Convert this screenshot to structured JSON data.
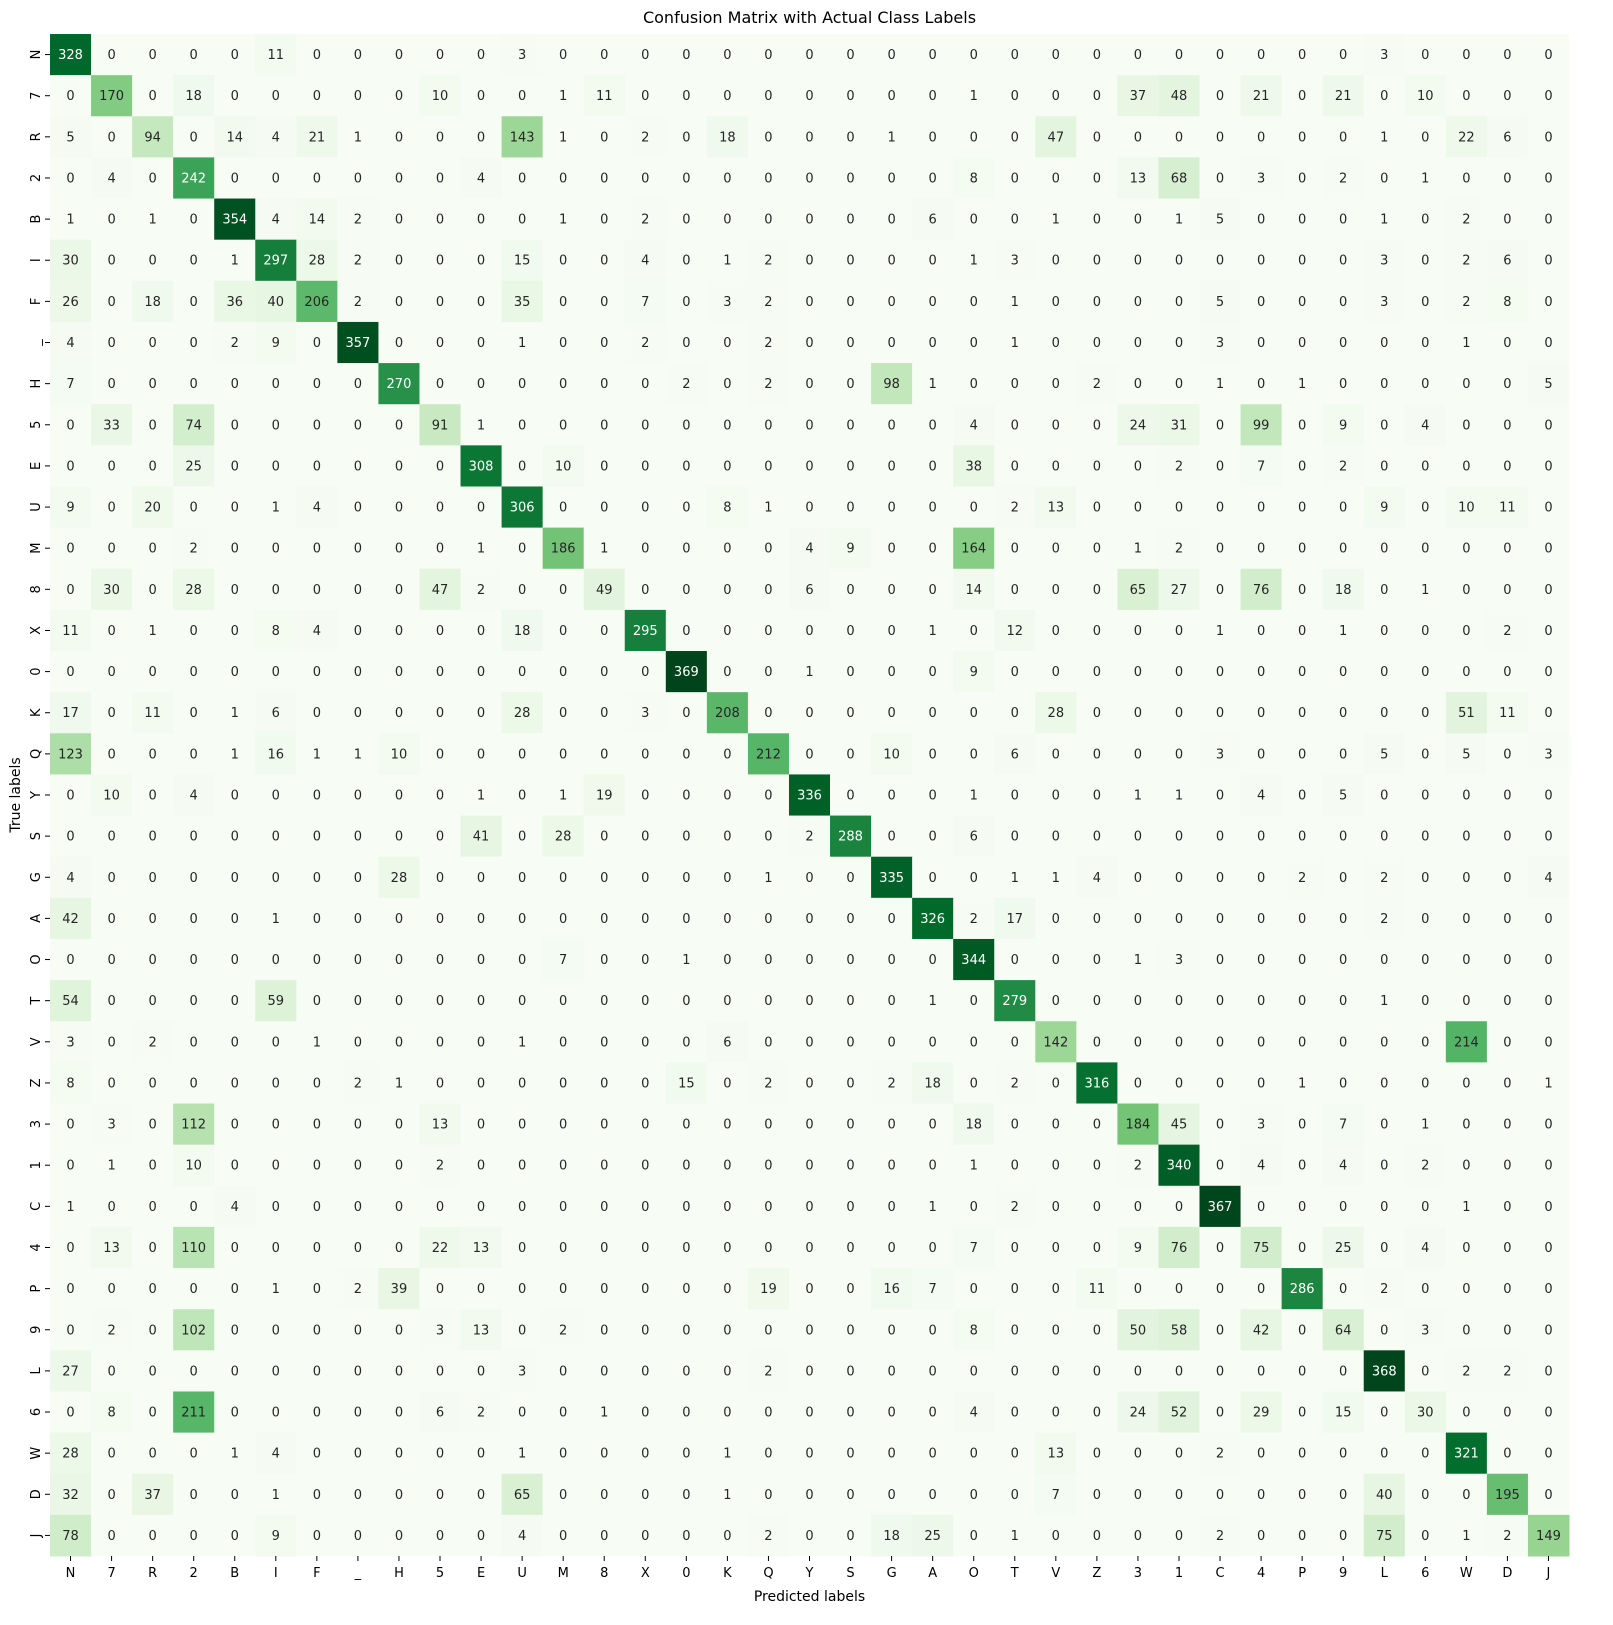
{
  "chart_data": {
    "type": "heatmap",
    "title": "Confusion Matrix with Actual Class Labels",
    "xlabel": "Predicted labels",
    "ylabel": "True labels",
    "colormap": "Greens",
    "colorbar": false,
    "value_range": [
      0,
      369
    ],
    "colors": {
      "low": "#f7fcf5",
      "high": "#00441b"
    },
    "x_categories": [
      "N",
      "7",
      "R",
      "2",
      "B",
      "I",
      "F",
      "_",
      "H",
      "5",
      "E",
      "U",
      "M",
      "8",
      "X",
      "0",
      "K",
      "Q",
      "Y",
      "S",
      "G",
      "A",
      "O",
      "T",
      "V",
      "Z",
      "3",
      "1",
      "C",
      "4",
      "P",
      "9",
      "L",
      "6",
      "W",
      "D",
      "J"
    ],
    "y_categories": [
      "N",
      "7",
      "R",
      "2",
      "B",
      "I",
      "F",
      "_",
      "H",
      "5",
      "E",
      "U",
      "M",
      "8",
      "X",
      "0",
      "K",
      "Q",
      "Y",
      "S",
      "G",
      "A",
      "O",
      "T",
      "V",
      "Z",
      "3",
      "1",
      "C",
      "4",
      "P",
      "9",
      "L",
      "6",
      "W",
      "D",
      "J"
    ],
    "matrix": [
      [
        328,
        0,
        0,
        0,
        0,
        11,
        0,
        0,
        0,
        0,
        0,
        3,
        0,
        0,
        0,
        0,
        0,
        0,
        0,
        0,
        0,
        0,
        0,
        0,
        0,
        0,
        0,
        0,
        0,
        0,
        0,
        0,
        3,
        0,
        0,
        0,
        0
      ],
      [
        0,
        170,
        0,
        18,
        0,
        0,
        0,
        0,
        0,
        10,
        0,
        0,
        1,
        11,
        0,
        0,
        0,
        0,
        0,
        0,
        0,
        0,
        1,
        0,
        0,
        0,
        37,
        48,
        0,
        21,
        0,
        21,
        0,
        10,
        0,
        0,
        0
      ],
      [
        5,
        0,
        94,
        0,
        14,
        4,
        21,
        1,
        0,
        0,
        0,
        143,
        1,
        0,
        2,
        0,
        18,
        0,
        0,
        0,
        1,
        0,
        0,
        0,
        47,
        0,
        0,
        0,
        0,
        0,
        0,
        0,
        1,
        0,
        22,
        6,
        0
      ],
      [
        0,
        4,
        0,
        242,
        0,
        0,
        0,
        0,
        0,
        0,
        4,
        0,
        0,
        0,
        0,
        0,
        0,
        0,
        0,
        0,
        0,
        0,
        8,
        0,
        0,
        0,
        13,
        68,
        0,
        3,
        0,
        2,
        0,
        1,
        0,
        0,
        0
      ],
      [
        1,
        0,
        1,
        0,
        354,
        4,
        14,
        2,
        0,
        0,
        0,
        0,
        1,
        0,
        2,
        0,
        0,
        0,
        0,
        0,
        0,
        6,
        0,
        0,
        1,
        0,
        0,
        1,
        5,
        0,
        0,
        0,
        1,
        0,
        2,
        0,
        0
      ],
      [
        30,
        0,
        0,
        0,
        1,
        297,
        28,
        2,
        0,
        0,
        0,
        15,
        0,
        0,
        4,
        0,
        1,
        2,
        0,
        0,
        0,
        0,
        1,
        3,
        0,
        0,
        0,
        0,
        0,
        0,
        0,
        0,
        3,
        0,
        2,
        6,
        0
      ],
      [
        26,
        0,
        18,
        0,
        36,
        40,
        206,
        2,
        0,
        0,
        0,
        35,
        0,
        0,
        7,
        0,
        3,
        2,
        0,
        0,
        0,
        0,
        0,
        1,
        0,
        0,
        0,
        0,
        5,
        0,
        0,
        0,
        3,
        0,
        2,
        8,
        0
      ],
      [
        4,
        0,
        0,
        0,
        2,
        9,
        0,
        357,
        0,
        0,
        0,
        1,
        0,
        0,
        2,
        0,
        0,
        2,
        0,
        0,
        0,
        0,
        0,
        1,
        0,
        0,
        0,
        0,
        3,
        0,
        0,
        0,
        0,
        0,
        1,
        0,
        0
      ],
      [
        7,
        0,
        0,
        0,
        0,
        0,
        0,
        0,
        270,
        0,
        0,
        0,
        0,
        0,
        0,
        2,
        0,
        2,
        0,
        0,
        98,
        1,
        0,
        0,
        0,
        2,
        0,
        0,
        1,
        0,
        1,
        0,
        0,
        0,
        0,
        0,
        5
      ],
      [
        0,
        33,
        0,
        74,
        0,
        0,
        0,
        0,
        0,
        91,
        1,
        0,
        0,
        0,
        0,
        0,
        0,
        0,
        0,
        0,
        0,
        0,
        4,
        0,
        0,
        0,
        24,
        31,
        0,
        99,
        0,
        9,
        0,
        4,
        0,
        0,
        0
      ],
      [
        0,
        0,
        0,
        25,
        0,
        0,
        0,
        0,
        0,
        0,
        308,
        0,
        10,
        0,
        0,
        0,
        0,
        0,
        0,
        0,
        0,
        0,
        38,
        0,
        0,
        0,
        0,
        2,
        0,
        7,
        0,
        2,
        0,
        0,
        0,
        0,
        0
      ],
      [
        9,
        0,
        20,
        0,
        0,
        1,
        4,
        0,
        0,
        0,
        0,
        306,
        0,
        0,
        0,
        0,
        8,
        1,
        0,
        0,
        0,
        0,
        0,
        2,
        13,
        0,
        0,
        0,
        0,
        0,
        0,
        0,
        9,
        0,
        10,
        11,
        0
      ],
      [
        0,
        0,
        0,
        2,
        0,
        0,
        0,
        0,
        0,
        0,
        1,
        0,
        186,
        1,
        0,
        0,
        0,
        0,
        4,
        9,
        0,
        0,
        164,
        0,
        0,
        0,
        1,
        2,
        0,
        0,
        0,
        0,
        0,
        0,
        0,
        0,
        0
      ],
      [
        0,
        30,
        0,
        28,
        0,
        0,
        0,
        0,
        0,
        47,
        2,
        0,
        0,
        49,
        0,
        0,
        0,
        0,
        6,
        0,
        0,
        0,
        14,
        0,
        0,
        0,
        65,
        27,
        0,
        76,
        0,
        18,
        0,
        1,
        0,
        0,
        0
      ],
      [
        11,
        0,
        1,
        0,
        0,
        8,
        4,
        0,
        0,
        0,
        0,
        18,
        0,
        0,
        295,
        0,
        0,
        0,
        0,
        0,
        0,
        1,
        0,
        12,
        0,
        0,
        0,
        0,
        1,
        0,
        0,
        1,
        0,
        0,
        0,
        2,
        0
      ],
      [
        0,
        0,
        0,
        0,
        0,
        0,
        0,
        0,
        0,
        0,
        0,
        0,
        0,
        0,
        0,
        369,
        0,
        0,
        1,
        0,
        0,
        0,
        9,
        0,
        0,
        0,
        0,
        0,
        0,
        0,
        0,
        0,
        0,
        0,
        0,
        0,
        0
      ],
      [
        17,
        0,
        11,
        0,
        1,
        6,
        0,
        0,
        0,
        0,
        0,
        28,
        0,
        0,
        3,
        0,
        208,
        0,
        0,
        0,
        0,
        0,
        0,
        0,
        28,
        0,
        0,
        0,
        0,
        0,
        0,
        0,
        0,
        0,
        51,
        11,
        0
      ],
      [
        123,
        0,
        0,
        0,
        1,
        16,
        1,
        1,
        10,
        0,
        0,
        0,
        0,
        0,
        0,
        0,
        0,
        212,
        0,
        0,
        10,
        0,
        0,
        6,
        0,
        0,
        0,
        0,
        3,
        0,
        0,
        0,
        5,
        0,
        5,
        0,
        3
      ],
      [
        0,
        10,
        0,
        4,
        0,
        0,
        0,
        0,
        0,
        0,
        1,
        0,
        1,
        19,
        0,
        0,
        0,
        0,
        336,
        0,
        0,
        0,
        1,
        0,
        0,
        0,
        1,
        1,
        0,
        4,
        0,
        5,
        0,
        0,
        0,
        0,
        0
      ],
      [
        0,
        0,
        0,
        0,
        0,
        0,
        0,
        0,
        0,
        0,
        41,
        0,
        28,
        0,
        0,
        0,
        0,
        0,
        2,
        288,
        0,
        0,
        6,
        0,
        0,
        0,
        0,
        0,
        0,
        0,
        0,
        0,
        0,
        0,
        0,
        0,
        0
      ],
      [
        4,
        0,
        0,
        0,
        0,
        0,
        0,
        0,
        28,
        0,
        0,
        0,
        0,
        0,
        0,
        0,
        0,
        1,
        0,
        0,
        335,
        0,
        0,
        1,
        1,
        4,
        0,
        0,
        0,
        0,
        2,
        0,
        2,
        0,
        0,
        0,
        4
      ],
      [
        42,
        0,
        0,
        0,
        0,
        1,
        0,
        0,
        0,
        0,
        0,
        0,
        0,
        0,
        0,
        0,
        0,
        0,
        0,
        0,
        0,
        326,
        2,
        17,
        0,
        0,
        0,
        0,
        0,
        0,
        0,
        0,
        2,
        0,
        0,
        0,
        0
      ],
      [
        0,
        0,
        0,
        0,
        0,
        0,
        0,
        0,
        0,
        0,
        0,
        0,
        7,
        0,
        0,
        1,
        0,
        0,
        0,
        0,
        0,
        0,
        344,
        0,
        0,
        0,
        1,
        3,
        0,
        0,
        0,
        0,
        0,
        0,
        0,
        0,
        0
      ],
      [
        54,
        0,
        0,
        0,
        0,
        59,
        0,
        0,
        0,
        0,
        0,
        0,
        0,
        0,
        0,
        0,
        0,
        0,
        0,
        0,
        0,
        1,
        0,
        279,
        0,
        0,
        0,
        0,
        0,
        0,
        0,
        0,
        1,
        0,
        0,
        0,
        0
      ],
      [
        3,
        0,
        2,
        0,
        0,
        0,
        1,
        0,
        0,
        0,
        0,
        1,
        0,
        0,
        0,
        0,
        6,
        0,
        0,
        0,
        0,
        0,
        0,
        0,
        142,
        0,
        0,
        0,
        0,
        0,
        0,
        0,
        0,
        0,
        214,
        0,
        0
      ],
      [
        8,
        0,
        0,
        0,
        0,
        0,
        0,
        2,
        1,
        0,
        0,
        0,
        0,
        0,
        0,
        15,
        0,
        2,
        0,
        0,
        2,
        18,
        0,
        2,
        0,
        316,
        0,
        0,
        0,
        0,
        1,
        0,
        0,
        0,
        0,
        0,
        1
      ],
      [
        0,
        3,
        0,
        112,
        0,
        0,
        0,
        0,
        0,
        13,
        0,
        0,
        0,
        0,
        0,
        0,
        0,
        0,
        0,
        0,
        0,
        0,
        18,
        0,
        0,
        0,
        184,
        45,
        0,
        3,
        0,
        7,
        0,
        1,
        0,
        0,
        0
      ],
      [
        0,
        1,
        0,
        10,
        0,
        0,
        0,
        0,
        0,
        2,
        0,
        0,
        0,
        0,
        0,
        0,
        0,
        0,
        0,
        0,
        0,
        0,
        1,
        0,
        0,
        0,
        2,
        340,
        0,
        4,
        0,
        4,
        0,
        2,
        0,
        0,
        0
      ],
      [
        1,
        0,
        0,
        0,
        4,
        0,
        0,
        0,
        0,
        0,
        0,
        0,
        0,
        0,
        0,
        0,
        0,
        0,
        0,
        0,
        0,
        1,
        0,
        2,
        0,
        0,
        0,
        0,
        367,
        0,
        0,
        0,
        0,
        0,
        1,
        0,
        0
      ],
      [
        0,
        13,
        0,
        110,
        0,
        0,
        0,
        0,
        0,
        22,
        13,
        0,
        0,
        0,
        0,
        0,
        0,
        0,
        0,
        0,
        0,
        0,
        7,
        0,
        0,
        0,
        9,
        76,
        0,
        75,
        0,
        25,
        0,
        4,
        0,
        0,
        0
      ],
      [
        0,
        0,
        0,
        0,
        0,
        1,
        0,
        2,
        39,
        0,
        0,
        0,
        0,
        0,
        0,
        0,
        0,
        19,
        0,
        0,
        16,
        7,
        0,
        0,
        0,
        11,
        0,
        0,
        0,
        0,
        286,
        0,
        2,
        0,
        0,
        0,
        0
      ],
      [
        0,
        2,
        0,
        102,
        0,
        0,
        0,
        0,
        0,
        3,
        13,
        0,
        2,
        0,
        0,
        0,
        0,
        0,
        0,
        0,
        0,
        0,
        8,
        0,
        0,
        0,
        50,
        58,
        0,
        42,
        0,
        64,
        0,
        3,
        0,
        0,
        0
      ],
      [
        27,
        0,
        0,
        0,
        0,
        0,
        0,
        0,
        0,
        0,
        0,
        3,
        0,
        0,
        0,
        0,
        0,
        2,
        0,
        0,
        0,
        0,
        0,
        0,
        0,
        0,
        0,
        0,
        0,
        0,
        0,
        0,
        368,
        0,
        2,
        2,
        0
      ],
      [
        0,
        8,
        0,
        211,
        0,
        0,
        0,
        0,
        0,
        6,
        2,
        0,
        0,
        1,
        0,
        0,
        0,
        0,
        0,
        0,
        0,
        0,
        4,
        0,
        0,
        0,
        24,
        52,
        0,
        29,
        0,
        15,
        0,
        30,
        0,
        0,
        0
      ],
      [
        28,
        0,
        0,
        0,
        1,
        4,
        0,
        0,
        0,
        0,
        0,
        1,
        0,
        0,
        0,
        0,
        1,
        0,
        0,
        0,
        0,
        0,
        0,
        0,
        13,
        0,
        0,
        0,
        2,
        0,
        0,
        0,
        0,
        0,
        321,
        0,
        0
      ],
      [
        32,
        0,
        37,
        0,
        0,
        1,
        0,
        0,
        0,
        0,
        0,
        65,
        0,
        0,
        0,
        0,
        1,
        0,
        0,
        0,
        0,
        0,
        0,
        0,
        7,
        0,
        0,
        0,
        0,
        0,
        0,
        0,
        40,
        0,
        0,
        195,
        0
      ],
      [
        78,
        0,
        0,
        0,
        0,
        9,
        0,
        0,
        0,
        0,
        0,
        4,
        0,
        0,
        0,
        0,
        0,
        2,
        0,
        0,
        18,
        25,
        0,
        1,
        0,
        0,
        0,
        0,
        2,
        0,
        0,
        0,
        75,
        0,
        1,
        2,
        149
      ]
    ]
  }
}
